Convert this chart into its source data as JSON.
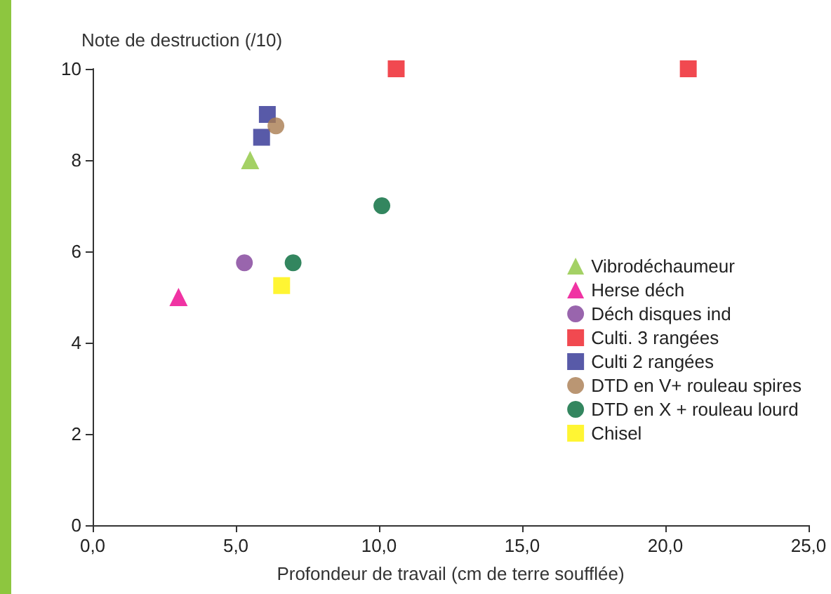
{
  "chart_data": {
    "type": "scatter",
    "xlabel": "Profondeur de travail (cm de terre soufflée)",
    "ylabel": "Note de destruction (/10)",
    "xlim": [
      0,
      25
    ],
    "xticks": [
      {
        "value": 0,
        "label": "0,0"
      },
      {
        "value": 5,
        "label": "5,0"
      },
      {
        "value": 10,
        "label": "10,0"
      },
      {
        "value": 15,
        "label": "15,0"
      },
      {
        "value": 20,
        "label": "20,0"
      },
      {
        "value": 25,
        "label": "25,0"
      }
    ],
    "ylim": [
      0,
      10
    ],
    "yticks": [
      0,
      2,
      4,
      6,
      8,
      10
    ],
    "grid": false,
    "legend": "right",
    "series": [
      {
        "name": "Vibrodéchaumeur",
        "color": "#8dc63f",
        "marker": "triangle",
        "x": [
          5.5
        ],
        "values": [
          8
        ]
      },
      {
        "name": "Herse déch",
        "color": "#ec008c",
        "marker": "triangle",
        "x": [
          3.0
        ],
        "values": [
          5
        ]
      },
      {
        "name": "Déch disques ind",
        "color": "#7f3f98",
        "marker": "circle",
        "x": [
          5.3
        ],
        "values": [
          5.75
        ]
      },
      {
        "name": "Culti. 3 rangées",
        "color": "#ed1c24",
        "marker": "square",
        "x": [
          10.6,
          20.8
        ],
        "values": [
          10,
          10
        ]
      },
      {
        "name": "Culti 2 rangées",
        "color": "#2e3192",
        "marker": "square",
        "x": [
          6.1,
          5.9
        ],
        "values": [
          9,
          8.5
        ]
      },
      {
        "name": "DTD en V+ rouleau spires",
        "color": "#a97c50",
        "marker": "circle",
        "x": [
          6.4
        ],
        "values": [
          8.75
        ]
      },
      {
        "name": "DTD en X + rouleau lourd",
        "color": "#006837",
        "marker": "circle",
        "x": [
          10.1,
          7.0
        ],
        "values": [
          7,
          5.75
        ]
      },
      {
        "name": "Chisel",
        "color": "#fff200",
        "marker": "square",
        "x": [
          6.6
        ],
        "values": [
          5.25
        ]
      }
    ]
  }
}
